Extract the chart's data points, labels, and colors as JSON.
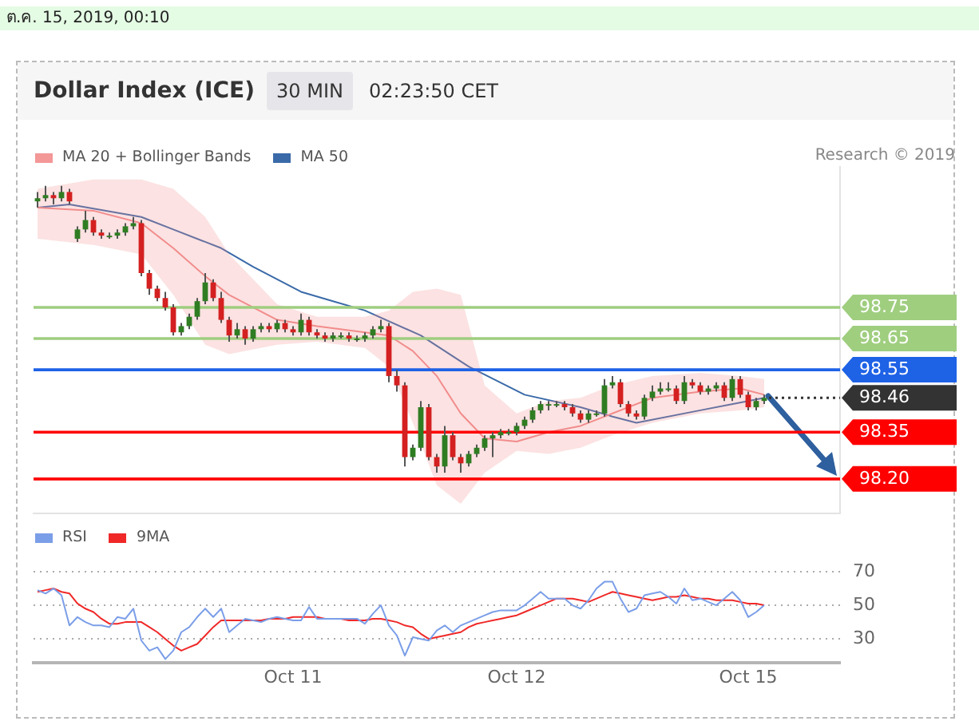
{
  "chart_data": [
    {
      "type": "candlestick",
      "title": "Dollar Index (ICE)",
      "annotations": [
        "ต.ค. 15, 2019, 00:10",
        "30 MIN",
        "02:23:50 CET",
        "Research © 2019"
      ],
      "categories": [
        null,
        null,
        null,
        null,
        null,
        null,
        null,
        null,
        null,
        null,
        null,
        null,
        null,
        null,
        null,
        null,
        null,
        null,
        null,
        null,
        null,
        null,
        null,
        null,
        null,
        null,
        null,
        null,
        null,
        null,
        null,
        null,
        null,
        null,
        null,
        null,
        null,
        null,
        null,
        null,
        null,
        null,
        null,
        null,
        null,
        null,
        null,
        null,
        null,
        null,
        null,
        null,
        null,
        null,
        null,
        null,
        null,
        null,
        null,
        null,
        null,
        null,
        null,
        null,
        null,
        null,
        null,
        null,
        null,
        null,
        null,
        null,
        null,
        null,
        null,
        null,
        null,
        null,
        null,
        null,
        null,
        null,
        null,
        null,
        null,
        null,
        null,
        null,
        null,
        null,
        null,
        null,
        null,
        null,
        null,
        null,
        null,
        null,
        null,
        null,
        null
      ],
      "ohlc": [
        [
          99.09,
          99.12,
          99.07,
          99.1
        ],
        [
          99.1,
          99.14,
          99.09,
          99.11
        ],
        [
          99.11,
          99.12,
          99.08,
          99.1
        ],
        [
          99.1,
          99.14,
          99.09,
          99.12
        ],
        [
          99.12,
          99.13,
          99.08,
          99.09
        ],
        [
          98.97,
          99.01,
          98.96,
          99.0
        ],
        [
          99.0,
          99.06,
          98.99,
          99.03
        ],
        [
          99.03,
          99.04,
          98.98,
          98.99
        ],
        [
          98.99,
          99.0,
          98.97,
          98.98
        ],
        [
          98.98,
          98.99,
          98.97,
          98.98
        ],
        [
          98.98,
          99.0,
          98.97,
          98.99
        ],
        [
          98.99,
          99.02,
          98.98,
          99.01
        ],
        [
          99.01,
          99.04,
          99.0,
          99.02
        ],
        [
          99.02,
          99.03,
          98.85,
          98.86
        ],
        [
          98.86,
          98.87,
          98.79,
          98.81
        ],
        [
          98.81,
          98.82,
          98.77,
          98.78
        ],
        [
          98.78,
          98.8,
          98.74,
          98.75
        ],
        [
          98.75,
          98.76,
          98.66,
          98.67
        ],
        [
          98.67,
          98.7,
          98.66,
          98.69
        ],
        [
          98.69,
          98.73,
          98.68,
          98.72
        ],
        [
          98.72,
          98.78,
          98.71,
          98.77
        ],
        [
          98.77,
          98.86,
          98.76,
          98.83
        ],
        [
          98.83,
          98.84,
          98.77,
          98.78
        ],
        [
          98.78,
          98.8,
          98.7,
          98.71
        ],
        [
          98.71,
          98.72,
          98.64,
          98.66
        ],
        [
          98.66,
          98.7,
          98.65,
          98.68
        ],
        [
          98.68,
          98.69,
          98.63,
          98.65
        ],
        [
          98.65,
          98.69,
          98.64,
          98.68
        ],
        [
          98.68,
          98.7,
          98.67,
          98.69
        ],
        [
          98.69,
          98.7,
          98.67,
          98.68
        ],
        [
          98.68,
          98.71,
          98.67,
          98.7
        ],
        [
          98.7,
          98.71,
          98.67,
          98.68
        ],
        [
          98.68,
          98.69,
          98.66,
          98.67
        ],
        [
          98.67,
          98.73,
          98.66,
          98.71
        ],
        [
          98.71,
          98.72,
          98.66,
          98.67
        ],
        [
          98.67,
          98.68,
          98.65,
          98.66
        ],
        [
          98.66,
          98.67,
          98.64,
          98.65
        ],
        [
          98.65,
          98.67,
          98.64,
          98.66
        ],
        [
          98.66,
          98.67,
          98.65,
          98.66
        ],
        [
          98.66,
          98.67,
          98.64,
          98.65
        ],
        [
          98.65,
          98.66,
          98.64,
          98.65
        ],
        [
          98.65,
          98.67,
          98.64,
          98.66
        ],
        [
          98.66,
          98.69,
          98.65,
          98.68
        ],
        [
          98.68,
          98.71,
          98.67,
          98.69
        ],
        [
          98.69,
          98.7,
          98.51,
          98.53
        ],
        [
          98.53,
          98.55,
          98.48,
          98.5
        ],
        [
          98.5,
          98.51,
          98.24,
          98.27
        ],
        [
          98.27,
          98.31,
          98.26,
          98.3
        ],
        [
          98.3,
          98.45,
          98.29,
          98.43
        ],
        [
          98.43,
          98.44,
          98.26,
          98.27
        ],
        [
          98.27,
          98.28,
          98.22,
          98.24
        ],
        [
          98.24,
          98.37,
          98.22,
          98.34
        ],
        [
          98.34,
          98.35,
          98.26,
          98.27
        ],
        [
          98.27,
          98.28,
          98.22,
          98.25
        ],
        [
          98.25,
          98.29,
          98.24,
          98.28
        ],
        [
          98.28,
          98.31,
          98.27,
          98.3
        ],
        [
          98.3,
          98.34,
          98.29,
          98.33
        ],
        [
          98.33,
          98.35,
          98.27,
          98.34
        ],
        [
          98.34,
          98.36,
          98.33,
          98.35
        ],
        [
          98.35,
          98.36,
          98.34,
          98.35
        ],
        [
          98.35,
          98.38,
          98.34,
          98.37
        ],
        [
          98.37,
          98.4,
          98.36,
          98.39
        ],
        [
          98.39,
          98.43,
          98.38,
          98.42
        ],
        [
          98.42,
          98.45,
          98.41,
          98.44
        ],
        [
          98.44,
          98.45,
          98.42,
          98.44
        ],
        [
          98.44,
          98.45,
          98.43,
          98.44
        ],
        [
          98.44,
          98.45,
          98.42,
          98.43
        ],
        [
          98.43,
          98.44,
          98.4,
          98.41
        ],
        [
          98.41,
          98.42,
          98.38,
          98.39
        ],
        [
          98.39,
          98.42,
          98.38,
          98.41
        ],
        [
          98.41,
          98.42,
          98.4,
          98.41
        ],
        [
          98.41,
          98.52,
          98.4,
          98.5
        ],
        [
          98.5,
          98.53,
          98.49,
          98.51
        ],
        [
          98.51,
          98.52,
          98.43,
          98.44
        ],
        [
          98.44,
          98.45,
          98.4,
          98.41
        ],
        [
          98.41,
          98.42,
          98.39,
          98.4
        ],
        [
          98.4,
          98.47,
          98.39,
          98.46
        ],
        [
          98.46,
          98.5,
          98.45,
          98.48
        ],
        [
          98.48,
          98.51,
          98.47,
          98.49
        ],
        [
          98.49,
          98.51,
          98.48,
          98.49
        ],
        [
          98.49,
          98.5,
          98.44,
          98.45
        ],
        [
          98.45,
          98.53,
          98.44,
          98.51
        ],
        [
          98.51,
          98.52,
          98.49,
          98.5
        ],
        [
          98.5,
          98.51,
          98.47,
          98.48
        ],
        [
          98.48,
          98.5,
          98.47,
          98.49
        ],
        [
          98.49,
          98.51,
          98.48,
          98.5
        ],
        [
          98.5,
          98.51,
          98.45,
          98.46
        ],
        [
          98.46,
          98.53,
          98.45,
          98.52
        ],
        [
          98.52,
          98.53,
          98.46,
          98.47
        ],
        [
          98.47,
          98.48,
          98.42,
          98.43
        ],
        [
          98.43,
          98.46,
          98.42,
          98.45
        ],
        [
          98.45,
          98.47,
          98.44,
          98.46
        ],
        null,
        null,
        null,
        null,
        null,
        null,
        null,
        null,
        null
      ],
      "series": [
        {
          "name": "MA 20 + Bollinger Bands",
          "type": "line",
          "color": "#f28c8c",
          "values": [
            99.07,
            null,
            null,
            null,
            null,
            null,
            null,
            99.06,
            null,
            null,
            null,
            null,
            null,
            99.02,
            null,
            null,
            null,
            98.94,
            null,
            null,
            null,
            98.85,
            null,
            null,
            98.79,
            null,
            null,
            null,
            null,
            null,
            98.71,
            null,
            null,
            null,
            null,
            98.69,
            null,
            null,
            null,
            null,
            null,
            98.67,
            null,
            null,
            98.66,
            null,
            null,
            98.61,
            null,
            null,
            98.53,
            null,
            null,
            98.41,
            null,
            null,
            98.33,
            null,
            null,
            null,
            98.32,
            null,
            null,
            null,
            98.35,
            null,
            null,
            null,
            98.37,
            null,
            null,
            null,
            98.41,
            null,
            null,
            null,
            null,
            98.46,
            null,
            null,
            null,
            null,
            null,
            98.48,
            null,
            null,
            null,
            null,
            98.49,
            null,
            null,
            98.47,
            null,
            null,
            null,
            null,
            null,
            null,
            null,
            null,
            null
          ],
          "lower": [
            98.97,
            null,
            null,
            null,
            null,
            null,
            null,
            98.95,
            null,
            null,
            null,
            null,
            null,
            98.92,
            null,
            null,
            null,
            98.79,
            null,
            null,
            null,
            98.63,
            null,
            null,
            98.6,
            null,
            null,
            null,
            null,
            null,
            98.63,
            null,
            null,
            null,
            null,
            98.64,
            null,
            null,
            null,
            null,
            null,
            98.62,
            null,
            null,
            98.56,
            null,
            null,
            98.38,
            null,
            null,
            98.18,
            null,
            null,
            98.12,
            null,
            null,
            98.22,
            null,
            null,
            null,
            98.29,
            null,
            null,
            null,
            98.28,
            null,
            null,
            null,
            98.3,
            null,
            null,
            null,
            98.34,
            null,
            null,
            null,
            null,
            98.38,
            null,
            null,
            null,
            null,
            null,
            98.41,
            null,
            null,
            null,
            null,
            98.42,
            null,
            null,
            98.43,
            null,
            null,
            null,
            null,
            null,
            null,
            null,
            null,
            null
          ],
          "upper": [
            99.13,
            null,
            null,
            null,
            null,
            null,
            null,
            99.16,
            null,
            null,
            null,
            null,
            null,
            99.16,
            null,
            null,
            null,
            99.13,
            null,
            null,
            null,
            99.04,
            null,
            null,
            98.92,
            null,
            null,
            null,
            null,
            null,
            98.76,
            null,
            null,
            null,
            null,
            98.72,
            null,
            null,
            null,
            null,
            null,
            98.72,
            null,
            null,
            98.74,
            null,
            null,
            98.8,
            null,
            null,
            98.81,
            null,
            null,
            98.79,
            null,
            null,
            98.5,
            null,
            null,
            null,
            98.41,
            null,
            null,
            null,
            98.45,
            null,
            null,
            null,
            98.46,
            null,
            null,
            null,
            98.5,
            null,
            null,
            null,
            null,
            98.53,
            null,
            null,
            null,
            null,
            null,
            98.54,
            null,
            null,
            null,
            null,
            98.53,
            null,
            null,
            98.52,
            null,
            null,
            null,
            null,
            null,
            null,
            null,
            null,
            null
          ]
        },
        {
          "name": "MA 50",
          "type": "line",
          "color": "#3a6aa8",
          "values": [
            99.07,
            null,
            null,
            null,
            99.08,
            null,
            null,
            null,
            null,
            null,
            null,
            null,
            null,
            99.04,
            null,
            null,
            null,
            99.0,
            null,
            null,
            null,
            null,
            null,
            98.94,
            null,
            null,
            null,
            98.88,
            null,
            null,
            null,
            null,
            null,
            98.8,
            null,
            null,
            null,
            98.77,
            null,
            null,
            null,
            98.74,
            null,
            null,
            null,
            null,
            null,
            null,
            98.66,
            null,
            null,
            null,
            null,
            null,
            98.56,
            null,
            null,
            null,
            null,
            null,
            null,
            98.47,
            null,
            null,
            null,
            null,
            null,
            null,
            98.43,
            null,
            null,
            null,
            98.4,
            null,
            null,
            98.38,
            null,
            null,
            null,
            null,
            null,
            null,
            null,
            98.42,
            null,
            null,
            null,
            null,
            null,
            98.45,
            null,
            98.46,
            null,
            null,
            null,
            null,
            null,
            null,
            null,
            null,
            null
          ]
        }
      ],
      "ref_lines": [
        {
          "axis": "y",
          "value": 98.75,
          "color": "#9fce7f"
        },
        {
          "axis": "y",
          "value": 98.65,
          "color": "#9fce7f"
        },
        {
          "axis": "y",
          "value": 98.55,
          "color": "#1e62e6"
        },
        {
          "axis": "y",
          "value": 98.46,
          "color": "#333333",
          "line_style": "dotted"
        },
        {
          "axis": "y",
          "value": 98.35,
          "color": "#ff0000"
        },
        {
          "axis": "y",
          "value": 98.2,
          "color": "#ff0000"
        }
      ],
      "ylim": [
        98.09,
        99.2
      ],
      "yticks": [
        {
          "value": 98.2,
          "label": "98.20"
        },
        98.35,
        98.46,
        98.55,
        98.65,
        98.75
      ],
      "legend": "top left",
      "tick_labels": "y"
    },
    {
      "type": "line",
      "categories": [
        null,
        null,
        null,
        null,
        null,
        null,
        null,
        null,
        null,
        null,
        null,
        null,
        null,
        null,
        null,
        null,
        null,
        null,
        null,
        null,
        null,
        null,
        null,
        null,
        null,
        null,
        null,
        null,
        null,
        null,
        null,
        null,
        "Oct 11",
        null,
        null,
        null,
        null,
        null,
        null,
        null,
        null,
        null,
        null,
        null,
        null,
        null,
        null,
        null,
        null,
        null,
        null,
        null,
        null,
        null,
        null,
        null,
        null,
        null,
        null,
        null,
        "Oct 12",
        null,
        null,
        null,
        null,
        null,
        null,
        null,
        null,
        null,
        null,
        null,
        null,
        null,
        null,
        null,
        null,
        null,
        null,
        null,
        null,
        null,
        null,
        null,
        null,
        null,
        null,
        null,
        null,
        "Oct 15",
        null,
        null,
        null,
        null,
        null,
        null,
        null,
        null,
        null,
        null,
        null
      ],
      "series": [
        {
          "name": "RSI",
          "color": "#7b9ee8",
          "values": [
            59,
            57,
            60,
            56,
            38,
            43,
            40,
            38,
            38,
            37,
            43,
            42,
            48,
            29,
            23,
            25,
            18,
            23,
            34,
            37,
            43,
            48,
            43,
            48,
            34,
            38,
            42,
            41,
            40,
            42,
            43,
            42,
            41,
            41,
            49,
            42,
            42,
            42,
            42,
            42,
            42,
            39,
            45,
            50,
            38,
            32,
            20,
            31,
            30,
            29,
            35,
            38,
            34,
            38,
            40,
            42,
            44,
            46,
            47,
            47,
            47,
            50,
            54,
            58,
            54,
            54,
            54,
            50,
            48,
            53,
            60,
            64,
            64,
            54,
            46,
            48,
            56,
            57,
            58,
            55,
            51,
            60,
            53,
            54,
            52,
            50,
            54,
            58,
            53,
            43,
            46,
            50,
            null,
            null,
            null,
            null,
            null,
            null,
            null,
            null,
            null
          ]
        },
        {
          "name": "9MA",
          "color": "#f02828",
          "values": [
            58,
            59,
            60,
            58,
            57,
            51,
            48,
            46,
            42,
            39,
            39,
            40,
            40,
            40,
            37,
            34,
            30,
            26,
            23,
            25,
            27,
            32,
            37,
            41,
            41,
            41,
            41,
            41,
            41,
            42,
            42,
            42,
            43,
            43,
            43,
            43,
            42,
            42,
            42,
            41,
            41,
            41,
            42,
            42,
            41,
            40,
            38,
            37,
            33,
            30,
            31,
            32,
            33,
            34,
            37,
            39,
            40,
            41,
            42,
            43,
            44,
            46,
            48,
            50,
            52,
            54,
            54,
            54,
            53,
            52,
            54,
            56,
            58,
            57,
            56,
            55,
            54,
            53,
            54,
            55,
            55,
            56,
            55,
            54,
            54,
            53,
            53,
            53,
            52,
            51,
            51,
            50,
            null,
            null,
            null,
            null,
            null,
            null,
            null,
            null,
            null
          ]
        }
      ],
      "ylim": [
        16,
        70
      ],
      "yticks": [
        30,
        50,
        70
      ],
      "grid": "y",
      "legend": "top left"
    }
  ]
}
